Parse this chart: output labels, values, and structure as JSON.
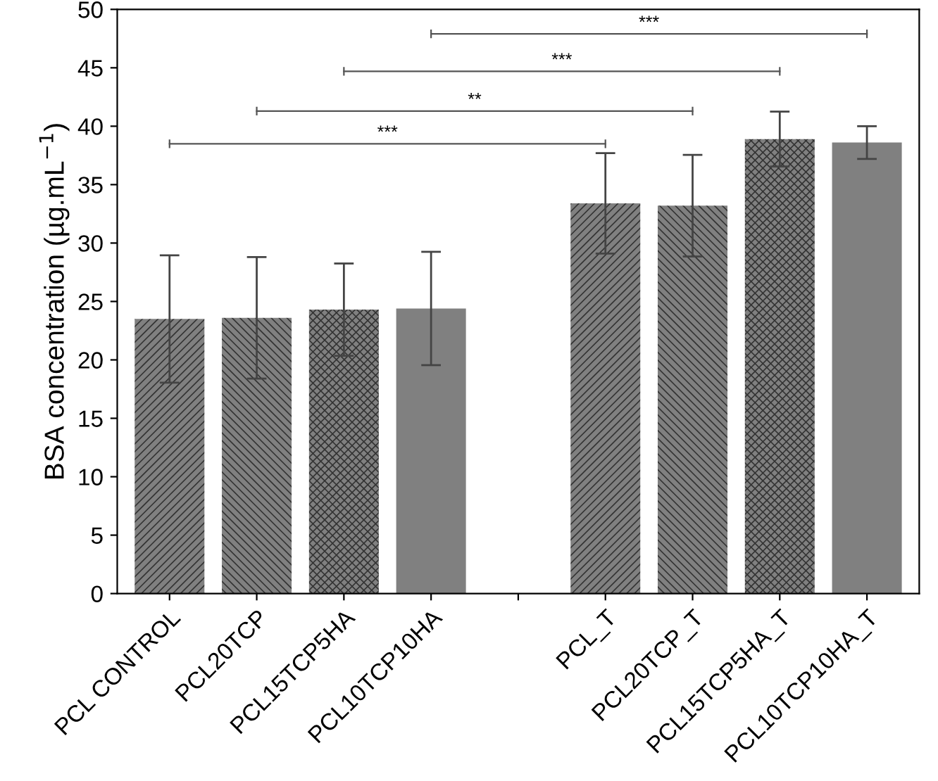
{
  "chart_data": {
    "type": "bar",
    "categories": [
      "PCL CONTROL",
      "PCL20TCP",
      "PCL15TCP5HA",
      "PCL10TCP10HA",
      null,
      "PCL_T",
      "PCL20TCP_T",
      "PCL15TCP5HA_T",
      "PCL10TCP10HA_T"
    ],
    "values": [
      23.5,
      23.6,
      24.3,
      24.4,
      null,
      33.4,
      33.2,
      38.9,
      38.6
    ],
    "errors": [
      5.45,
      5.2,
      3.95,
      4.85,
      null,
      4.3,
      4.35,
      2.35,
      1.4
    ],
    "color": "#808080",
    "ylabel": "BSA concentration (µg.mL$^{−1}$)",
    "ylim": [
      0,
      50
    ],
    "yticks": [
      0,
      5,
      10,
      15,
      20,
      25,
      30,
      35,
      40,
      45,
      50
    ],
    "grid": false,
    "legend": false,
    "annotations": [
      "***",
      "**",
      "***",
      "***"
    ]
  }
}
